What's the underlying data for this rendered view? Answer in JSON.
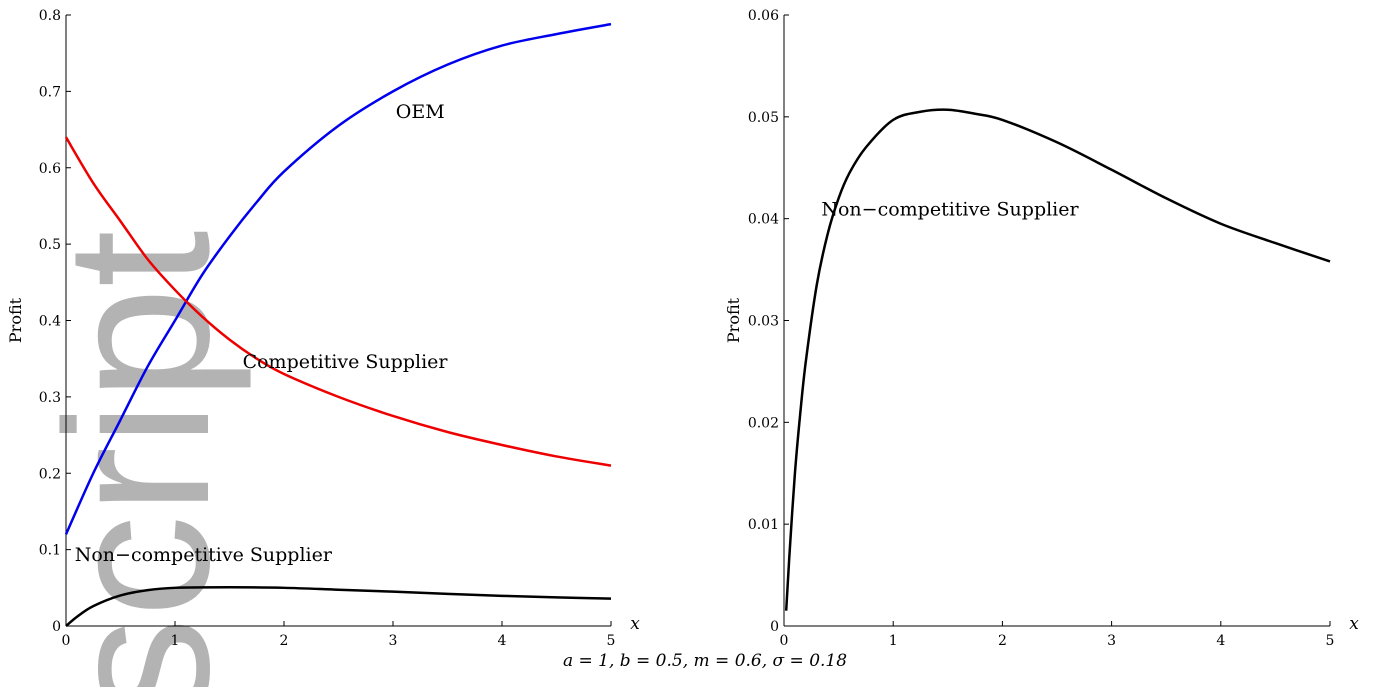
{
  "watermark": {
    "text": "script",
    "color": "#b3b3b3"
  },
  "chart_data": [
    {
      "type": "line",
      "title": "",
      "xlabel": "x",
      "ylabel": "Profit",
      "xlim": [
        0,
        5
      ],
      "ylim": [
        0,
        0.8
      ],
      "xticks": [
        0,
        1,
        2,
        3,
        4,
        5
      ],
      "yticks": [
        0,
        0.1,
        0.2,
        0.3,
        0.4,
        0.5,
        0.6,
        0.7,
        0.8
      ],
      "ytick_labels": [
        "0",
        "0.1",
        "0.2",
        "0.3",
        "0.4",
        "0.5",
        "0.6",
        "0.7",
        "0.8"
      ],
      "grid": false,
      "series": [
        {
          "name": "OEM",
          "color": "#0000ee",
          "x": [
            0,
            0.25,
            0.5,
            0.75,
            1,
            1.25,
            1.5,
            1.75,
            2,
            2.5,
            3,
            3.5,
            4,
            4.5,
            5
          ],
          "y": [
            0.12,
            0.2,
            0.27,
            0.34,
            0.4,
            0.46,
            0.51,
            0.555,
            0.595,
            0.655,
            0.7,
            0.735,
            0.76,
            0.775,
            0.788
          ]
        },
        {
          "name": "Competitive Supplier",
          "color": "#ee0000",
          "x": [
            0,
            0.25,
            0.5,
            0.75,
            1,
            1.25,
            1.5,
            1.75,
            2,
            2.5,
            3,
            3.5,
            4,
            4.5,
            5
          ],
          "y": [
            0.64,
            0.58,
            0.53,
            0.48,
            0.44,
            0.405,
            0.375,
            0.35,
            0.33,
            0.3,
            0.275,
            0.254,
            0.237,
            0.222,
            0.21
          ]
        },
        {
          "name": "Non−competitive Supplier",
          "color": "#000000",
          "x": [
            0,
            0.1,
            0.25,
            0.5,
            0.75,
            1,
            1.5,
            2,
            2.5,
            3,
            3.5,
            4,
            4.5,
            5
          ],
          "y": [
            0.0,
            0.012,
            0.026,
            0.04,
            0.047,
            0.05,
            0.0507,
            0.05,
            0.0475,
            0.045,
            0.042,
            0.0395,
            0.0375,
            0.0358
          ]
        }
      ],
      "annotations": [
        {
          "text": "OEM",
          "x": 3.25,
          "y": 0.665
        },
        {
          "text": "Competitive Supplier",
          "x": 2.56,
          "y": 0.338
        },
        {
          "text": "Non−competitive Supplier",
          "x": 1.26,
          "y": 0.085
        }
      ]
    },
    {
      "type": "line",
      "title": "",
      "xlabel": "x",
      "ylabel": "Profit",
      "xlim": [
        0,
        5
      ],
      "ylim": [
        0,
        0.06
      ],
      "xticks": [
        0,
        1,
        2,
        3,
        4,
        5
      ],
      "yticks": [
        0,
        0.01,
        0.02,
        0.03,
        0.04,
        0.05,
        0.06
      ],
      "ytick_labels": [
        "0",
        "0.01",
        "0.02",
        "0.03",
        "0.04",
        "0.05",
        "0.06"
      ],
      "grid": false,
      "series": [
        {
          "name": "Non−competitive Supplier",
          "color": "#000000",
          "x": [
            0.02,
            0.05,
            0.1,
            0.15,
            0.2,
            0.3,
            0.4,
            0.5,
            0.6,
            0.75,
            1,
            1.25,
            1.5,
            1.75,
            2,
            2.5,
            3,
            3.5,
            4,
            4.5,
            5
          ],
          "y": [
            0.0015,
            0.007,
            0.015,
            0.021,
            0.026,
            0.0335,
            0.0385,
            0.042,
            0.0445,
            0.047,
            0.0497,
            0.0505,
            0.0507,
            0.0503,
            0.0497,
            0.0475,
            0.0448,
            0.042,
            0.0395,
            0.0376,
            0.0358
          ]
        }
      ],
      "annotations": [
        {
          "text": "Non−competitive Supplier",
          "x": 1.52,
          "y": 0.0403
        }
      ]
    }
  ],
  "footnote": "a = 1, b = 0.5, m = 0.6, σ = 0.18"
}
